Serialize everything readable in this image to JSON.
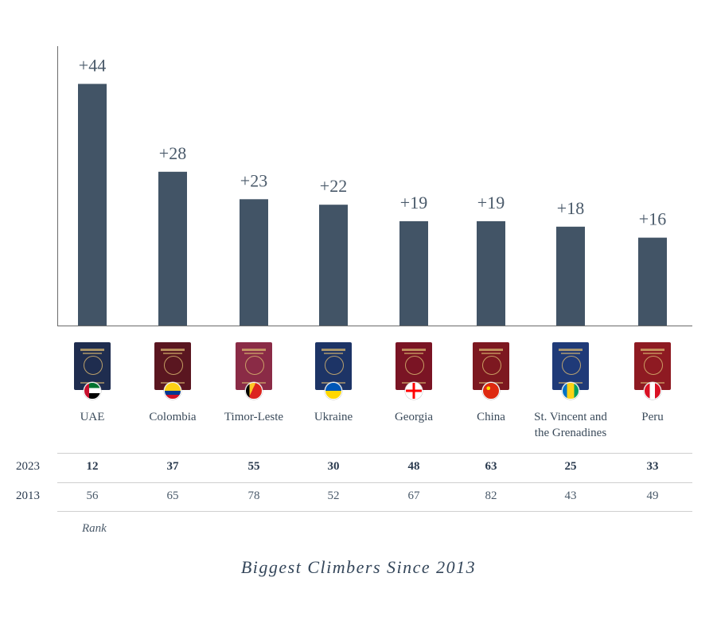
{
  "chart_data": {
    "type": "bar",
    "title": "Biggest Climbers Since 2013",
    "categories": [
      "UAE",
      "Colombia",
      "Timor-Leste",
      "Ukraine",
      "Georgia",
      "China",
      "St. Vincent and the Grenadines",
      "Peru"
    ],
    "category_lines": [
      [
        "UAE"
      ],
      [
        "Colombia"
      ],
      [
        "Timor-Leste"
      ],
      [
        "Ukraine"
      ],
      [
        "Georgia"
      ],
      [
        "China"
      ],
      [
        "St. Vincent and",
        "the Grenadines"
      ],
      [
        "Peru"
      ]
    ],
    "values": [
      44,
      28,
      23,
      22,
      19,
      19,
      18,
      16
    ],
    "data_labels": [
      "+44",
      "+28",
      "+23",
      "+22",
      "+19",
      "+19",
      "+18",
      "+16"
    ],
    "ylim": [
      0,
      50
    ],
    "grid": false,
    "bar_color": "#425466",
    "table": {
      "rows": [
        {
          "label": "2023",
          "values": [
            "12",
            "37",
            "55",
            "30",
            "48",
            "63",
            "25",
            "33"
          ]
        },
        {
          "label": "2013",
          "values": [
            "56",
            "65",
            "78",
            "52",
            "67",
            "82",
            "43",
            "49"
          ]
        }
      ],
      "note": "Rank"
    }
  },
  "passports": [
    {
      "country": "UAE",
      "cover": "#1f2d4f",
      "flag": "uae-flag-icon"
    },
    {
      "country": "Colombia",
      "cover": "#5a1620",
      "flag": "colombia-flag-icon"
    },
    {
      "country": "Timor-Leste",
      "cover": "#8a2b46",
      "flag": "timor-leste-flag-icon"
    },
    {
      "country": "Ukraine",
      "cover": "#1d3466",
      "flag": "ukraine-flag-icon"
    },
    {
      "country": "Georgia",
      "cover": "#7a1424",
      "flag": "georgia-flag-icon"
    },
    {
      "country": "China",
      "cover": "#7d1820",
      "flag": "china-flag-icon"
    },
    {
      "country": "St. Vincent and the Grenadines",
      "cover": "#1f3a78",
      "flag": "st-vincent-flag-icon"
    },
    {
      "country": "Peru",
      "cover": "#8e1a22",
      "flag": "peru-flag-icon"
    }
  ]
}
